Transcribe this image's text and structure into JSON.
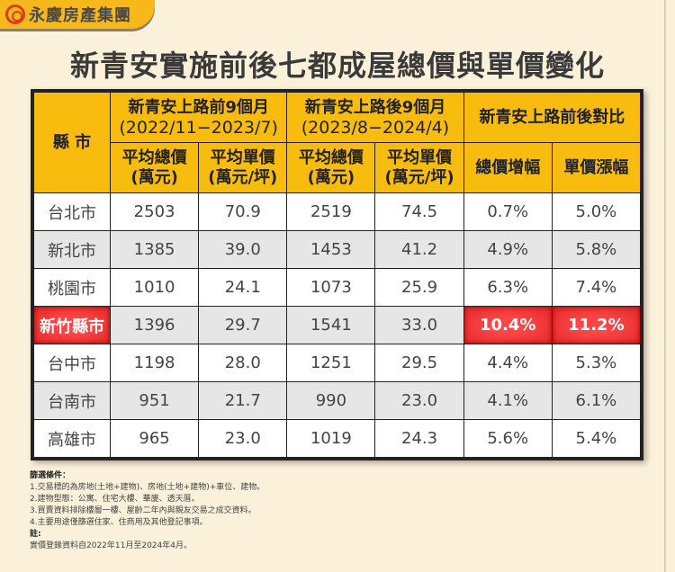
{
  "brand": {
    "name": "永慶房產集團",
    "accent": "#f7b81c"
  },
  "title": "新青安實施前後七都成屋總價與單價變化",
  "table": {
    "county_header": "縣 市",
    "groups": [
      {
        "title": "新青安上路前9個月",
        "period": "(2022/11−2023/7)"
      },
      {
        "title": "新青安上路後9個月",
        "period": "(2023/8−2024/4)"
      },
      {
        "title": "新青安上路前後對比"
      }
    ],
    "subheaders": [
      "平均總價\n(萬元)",
      "平均單價\n(萬元/坪)",
      "平均總價\n(萬元)",
      "平均單價\n(萬元/坪)",
      "總價增幅",
      "單價漲幅"
    ],
    "rows": [
      [
        "台北市",
        "2503",
        "70.9",
        "2519",
        "74.5",
        "0.7%",
        "5.0%"
      ],
      [
        "新北市",
        "1385",
        "39.0",
        "1453",
        "41.2",
        "4.9%",
        "5.8%"
      ],
      [
        "桃園市",
        "1010",
        "24.1",
        "1073",
        "25.9",
        "6.3%",
        "7.4%"
      ],
      [
        "新竹縣市",
        "1396",
        "29.7",
        "1541",
        "33.0",
        "10.4%",
        "11.2%"
      ],
      [
        "台中市",
        "1198",
        "28.0",
        "1251",
        "29.5",
        "4.4%",
        "5.3%"
      ],
      [
        "台南市",
        "951",
        "21.7",
        "990",
        "23.0",
        "4.1%",
        "6.1%"
      ],
      [
        "高雄市",
        "965",
        "23.0",
        "1019",
        "24.3",
        "5.6%",
        "5.4%"
      ]
    ],
    "highlight_row": "新竹縣市",
    "highlight_color": "#f03a3a"
  },
  "notes": {
    "filter_title": "篩選條件：",
    "items": [
      "1.交易標的為房地(土地+建物)、房地(土地+建物)+車位、建物。",
      "2.建物型態：公寓、住宅大樓、華廈、透天厝。",
      "3.買賣資料排除樓層一樓、屋齡二年內與親友交易之成交資料。",
      "4.主要用途僅篩選住家、住商用及其他登記事項。"
    ],
    "note_title": "註:",
    "note": "實價登錄資料自2022年11月至2024年4月。"
  }
}
